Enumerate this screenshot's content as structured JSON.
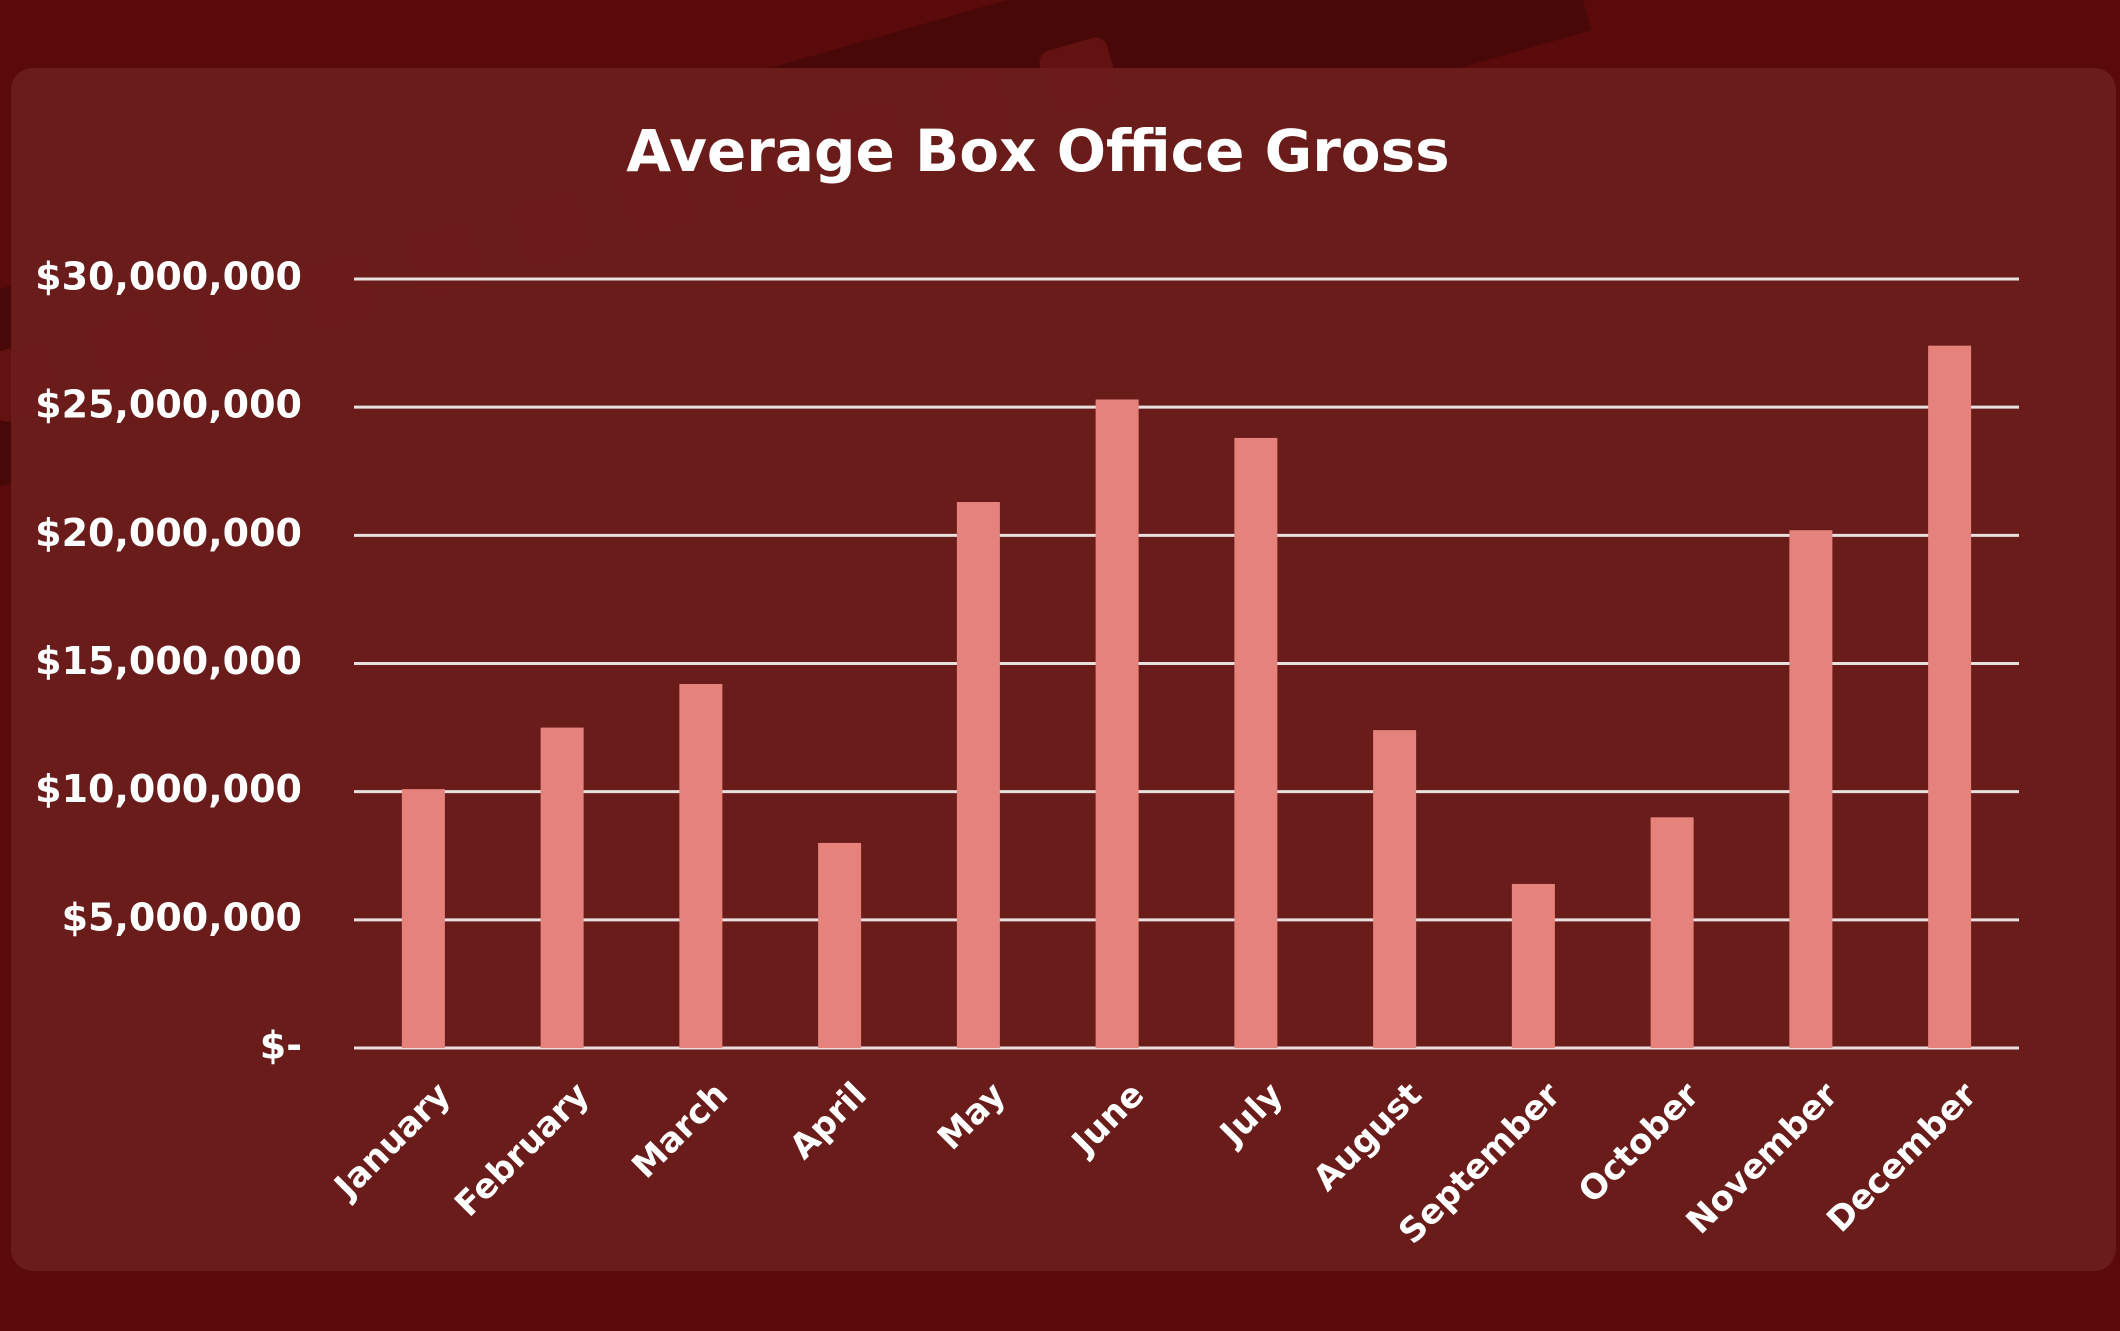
{
  "chart_data": {
    "type": "bar",
    "title": "Average Box Office Gross",
    "categories": [
      "January",
      "February",
      "March",
      "April",
      "May",
      "June",
      "July",
      "August",
      "September",
      "October",
      "November",
      "December"
    ],
    "values": [
      10100000,
      12500000,
      14200000,
      8000000,
      21300000,
      25300000,
      23800000,
      12400000,
      6400000,
      9000000,
      20200000,
      27400000
    ],
    "color": "#e5827c",
    "ylim": [
      0,
      30000000
    ],
    "yticks": [
      {
        "value": 0,
        "label": "$-"
      },
      {
        "value": 5000000,
        "label": "$5,000,000"
      },
      {
        "value": 10000000,
        "label": "$10,000,000"
      },
      {
        "value": 15000000,
        "label": "$15,000,000"
      },
      {
        "value": 20000000,
        "label": "$20,000,000"
      },
      {
        "value": 25000000,
        "label": "$25,000,000"
      },
      {
        "value": 30000000,
        "label": "$30,000,000"
      }
    ],
    "grid": true
  }
}
